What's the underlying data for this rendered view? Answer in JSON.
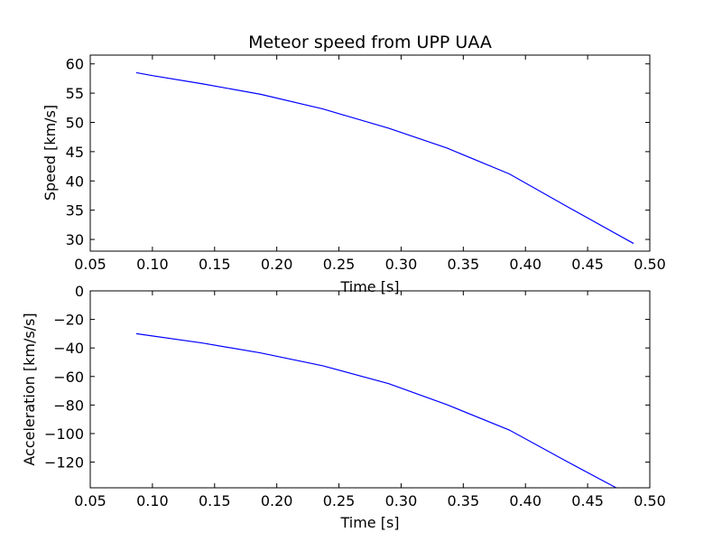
{
  "chart_data": [
    {
      "type": "line",
      "title": "Meteor speed from  UPP UAA",
      "xlabel": "Time [s]",
      "ylabel": "Speed [km/s]",
      "xlim": [
        0.05,
        0.5
      ],
      "ylim": [
        28,
        61.5
      ],
      "xticks": [
        0.05,
        0.1,
        0.15,
        0.2,
        0.25,
        0.3,
        0.35,
        0.4,
        0.45,
        0.5
      ],
      "xtick_labels": [
        "0.05",
        "0.10",
        "0.15",
        "0.20",
        "0.25",
        "0.30",
        "0.35",
        "0.40",
        "0.45",
        "0.50"
      ],
      "yticks": [
        30,
        35,
        40,
        45,
        50,
        55,
        60
      ],
      "ytick_labels": [
        "30",
        "35",
        "40",
        "45",
        "50",
        "55",
        "60"
      ],
      "grid": false,
      "series": [
        {
          "color": "#0000ff",
          "x": [
            0.087,
            0.1,
            0.14,
            0.187,
            0.237,
            0.29,
            0.337,
            0.387,
            0.437,
            0.487
          ],
          "y": [
            58.5,
            58.0,
            56.6,
            54.8,
            52.3,
            49.0,
            45.6,
            41.2,
            35.2,
            29.3
          ]
        }
      ]
    },
    {
      "type": "line",
      "title": "",
      "xlabel": "Time [s]",
      "ylabel": "Acceleration [km/s/s]",
      "xlim": [
        0.05,
        0.5
      ],
      "ylim": [
        -138,
        0
      ],
      "xticks": [
        0.05,
        0.1,
        0.15,
        0.2,
        0.25,
        0.3,
        0.35,
        0.4,
        0.45,
        0.5
      ],
      "xtick_labels": [
        "0.05",
        "0.10",
        "0.15",
        "0.20",
        "0.25",
        "0.30",
        "0.35",
        "0.40",
        "0.45",
        "0.50"
      ],
      "yticks": [
        -120,
        -100,
        -80,
        -60,
        -40,
        -20,
        0
      ],
      "ytick_labels": [
        "−120",
        "−100",
        "−80",
        "−60",
        "−40",
        "−20",
        "0"
      ],
      "grid": false,
      "series": [
        {
          "color": "#0000ff",
          "x": [
            0.087,
            0.14,
            0.187,
            0.237,
            0.29,
            0.337,
            0.387,
            0.43,
            0.473
          ],
          "y": [
            -30,
            -36.5,
            -43.5,
            -52.5,
            -65,
            -79.8,
            -97.5,
            -118,
            -138
          ]
        }
      ]
    }
  ]
}
